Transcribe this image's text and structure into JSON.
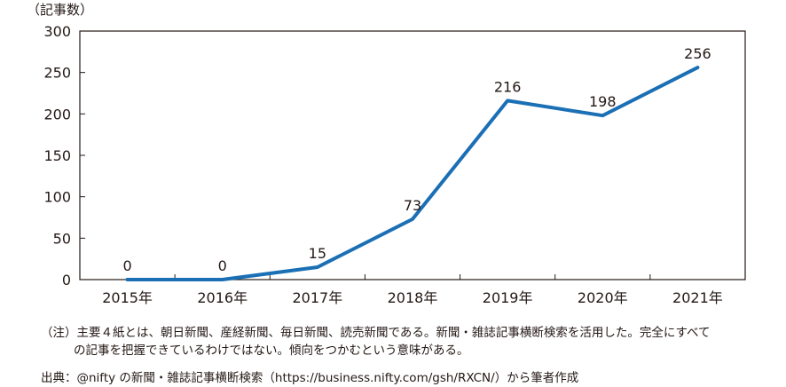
{
  "chart_data": {
    "type": "line",
    "categories": [
      "2015年",
      "2016年",
      "2017年",
      "2018年",
      "2019年",
      "2020年",
      "2021年"
    ],
    "series": [
      {
        "values": [
          0,
          0,
          15,
          73,
          216,
          198,
          256
        ]
      }
    ],
    "data_labels": [
      "0",
      "0",
      "15",
      "73",
      "216",
      "198",
      "256"
    ],
    "ylabel": "（記事数）",
    "ylim": [
      0,
      300
    ],
    "yticks": [
      0,
      50,
      100,
      150,
      200,
      250,
      300
    ],
    "grid": false,
    "line_color": "#1a6fb5"
  },
  "notes": {
    "line1": "（注）主要４紙とは、朝日新聞、産経新聞、毎日新聞、読売新聞である。新聞・雑誌記事横断検索を活用した。完全にすべて",
    "line2": "の記事を把握できているわけではない。傾向をつかむという意味がある。",
    "source": "出典：@nifty の新聞・雑誌記事横断検索（https://business.nifty.com/gsh/RXCN/）から筆者作成"
  }
}
